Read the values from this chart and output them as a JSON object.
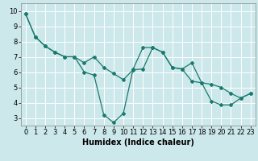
{
  "xlabel": "Humidex (Indice chaleur)",
  "background_color": "#cce8ea",
  "grid_color": "#ffffff",
  "line_color": "#1a7a6e",
  "xlim": [
    -0.5,
    23.5
  ],
  "ylim": [
    2.5,
    10.5
  ],
  "xticks": [
    0,
    1,
    2,
    3,
    4,
    5,
    6,
    7,
    8,
    9,
    10,
    11,
    12,
    13,
    14,
    15,
    16,
    17,
    18,
    19,
    20,
    21,
    22,
    23
  ],
  "yticks": [
    3,
    4,
    5,
    6,
    7,
    8,
    9,
    10
  ],
  "series1_x": [
    0,
    1,
    2,
    3,
    4,
    5,
    6,
    7,
    8,
    9,
    10,
    11,
    12,
    13,
    14,
    15,
    16,
    17,
    18,
    19,
    20,
    21,
    22,
    23
  ],
  "series1_y": [
    9.8,
    8.3,
    7.7,
    7.3,
    7.0,
    7.0,
    6.0,
    5.8,
    3.2,
    2.7,
    3.3,
    6.2,
    7.6,
    7.6,
    7.3,
    6.3,
    6.2,
    6.6,
    5.3,
    4.1,
    3.85,
    3.85,
    4.3,
    4.6
  ],
  "series2_x": [
    0,
    1,
    2,
    3,
    4,
    5,
    6,
    7,
    8,
    9,
    10,
    11,
    12,
    13,
    14,
    15,
    16,
    17,
    18,
    19,
    20,
    21,
    22,
    23
  ],
  "series2_y": [
    9.8,
    8.3,
    7.7,
    7.3,
    7.0,
    7.0,
    6.6,
    7.0,
    6.3,
    5.9,
    5.5,
    6.15,
    6.2,
    7.6,
    7.3,
    6.3,
    6.2,
    5.4,
    5.3,
    5.2,
    5.0,
    4.6,
    4.3,
    4.6
  ],
  "marker": "D",
  "markersize": 2.0,
  "linewidth": 0.9,
  "xlabel_fontsize": 7,
  "tick_fontsize": 6
}
